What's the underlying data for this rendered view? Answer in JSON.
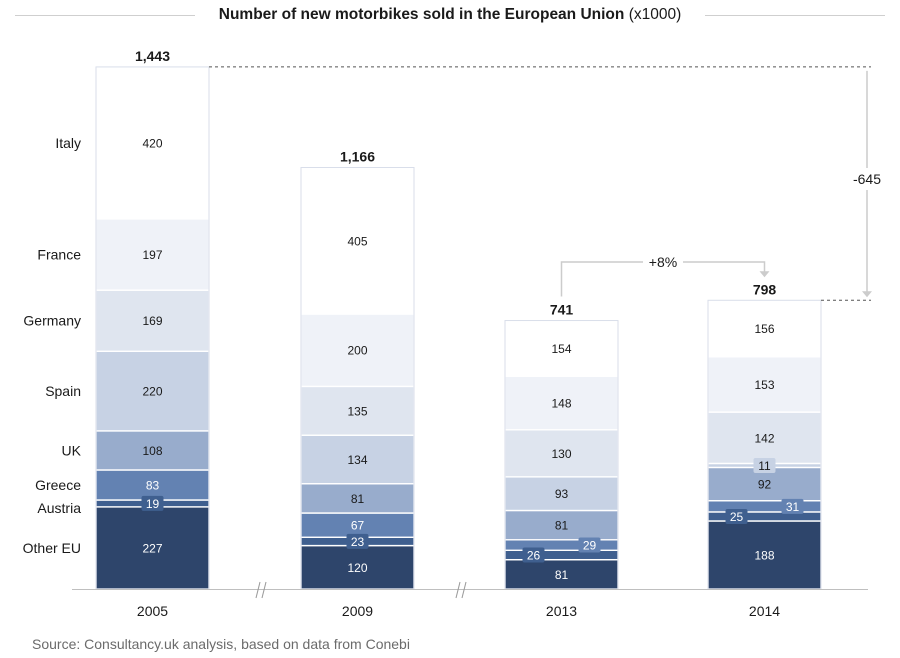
{
  "chart_data": {
    "type": "bar",
    "stacked": true,
    "title": "Number of new motorbikes sold in the European Union",
    "title_unit": "(x1000)",
    "categories": [
      "2005",
      "2009",
      "2013",
      "2014"
    ],
    "totals": [
      "1,443",
      "1,166",
      "741",
      "798"
    ],
    "series": [
      {
        "name": "Other EU",
        "color": "#2e456b",
        "label_color": "#ffffff",
        "values": [
          227,
          120,
          81,
          188
        ]
      },
      {
        "name": "Austria",
        "color": "#3f5f8f",
        "label_color": "#ffffff",
        "values": [
          19,
          23,
          26,
          25
        ]
      },
      {
        "name": "Greece",
        "color": "#6382b2",
        "label_color": "#ffffff",
        "values": [
          83,
          67,
          29,
          31
        ]
      },
      {
        "name": "UK",
        "color": "#98accc",
        "label_color": "#1a1a1a",
        "values": [
          108,
          81,
          81,
          92
        ]
      },
      {
        "name": "Spain",
        "color": "#c7d2e4",
        "label_color": "#1a1a1a",
        "values": [
          220,
          134,
          93,
          11
        ]
      },
      {
        "name": "Germany",
        "color": "#dfe5ef",
        "label_color": "#1a1a1a",
        "values": [
          169,
          135,
          130,
          142
        ]
      },
      {
        "name": "France",
        "color": "#eff2f8",
        "label_color": "#1a1a1a",
        "values": [
          197,
          200,
          148,
          153
        ]
      },
      {
        "name": "Italy",
        "color": "#ffffff",
        "label_color": "#1a1a1a",
        "values": [
          420,
          405,
          154,
          156
        ]
      }
    ],
    "annotations": {
      "change_2013_2014": "+8%",
      "change_2005_2014": "-645"
    },
    "ylim": [
      0,
      1443
    ],
    "xlabel": "",
    "ylabel": ""
  },
  "footer": {
    "source": "Source: Consultancy.uk analysis, based on data from Conebi"
  }
}
